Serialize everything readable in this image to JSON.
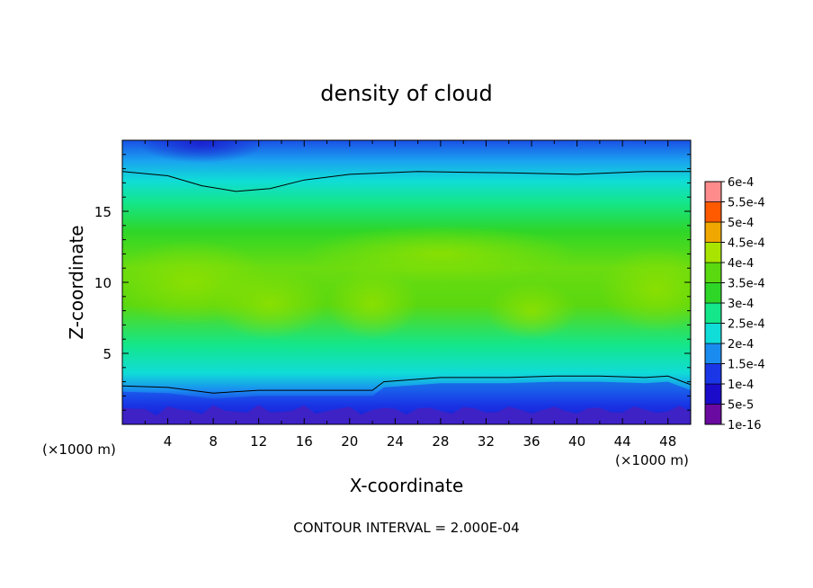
{
  "chart_data": {
    "type": "heatmap",
    "title": "density of cloud",
    "xlabel": "X-coordinate",
    "ylabel": "Z-coordinate",
    "x_units": "(×1000 m)",
    "z_units": "(×1000 m)",
    "xlim": [
      0,
      50
    ],
    "ylim": [
      0,
      20
    ],
    "x_ticks": [
      4,
      8,
      12,
      16,
      20,
      24,
      28,
      32,
      36,
      40,
      44,
      48
    ],
    "y_ticks": [
      5,
      10,
      15
    ],
    "footer": "CONTOUR INTERVAL = 2.000E-04",
    "colorbar": {
      "levels": [
        "1e-16",
        "5e-5",
        "1e-4",
        "1.5e-4",
        "2e-4",
        "2.5e-4",
        "3e-4",
        "3.5e-4",
        "4e-4",
        "4.5e-4",
        "5e-4",
        "5.5e-4",
        "6e-4"
      ],
      "colors": [
        "#6a0aa0",
        "#1a0cc8",
        "#1a36e6",
        "#1a8cf0",
        "#10dcd8",
        "#14e68a",
        "#2ed628",
        "#5ad810",
        "#a8e400",
        "#f0a800",
        "#ff5a00",
        "#ff3030",
        "#ff8c8c"
      ]
    },
    "contour_levels": [
      0,
      0.0002
    ],
    "grid": false,
    "legend": "right"
  }
}
